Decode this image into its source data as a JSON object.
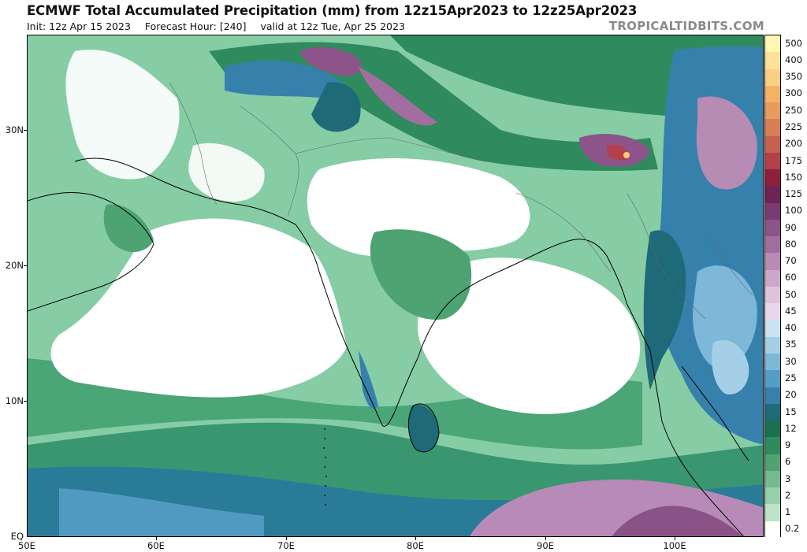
{
  "header": {
    "title": "ECMWF Total Accumulated Precipitation (mm) from 12z15Apr2023 to 12z25Apr2023",
    "init": "Init: 12z Apr 15 2023",
    "forecast_hour": "Forecast Hour: [240]",
    "valid": "valid at 12z Tue, Apr 25 2023",
    "brand": "TROPICALTIDBITS.COM"
  },
  "axes": {
    "lat_labels": [
      "30N",
      "20N",
      "10N",
      "EQ"
    ],
    "lon_labels": [
      "50E",
      "60E",
      "70E",
      "80E",
      "90E",
      "100E"
    ]
  },
  "colorbar": {
    "levels": [
      {
        "label": "500",
        "color": "#fff7b0"
      },
      {
        "label": "400",
        "color": "#fde19a"
      },
      {
        "label": "350",
        "color": "#fbcf82"
      },
      {
        "label": "300",
        "color": "#f5b265"
      },
      {
        "label": "250",
        "color": "#e79b5c"
      },
      {
        "label": "225",
        "color": "#d97d55"
      },
      {
        "label": "200",
        "color": "#c7614f"
      },
      {
        "label": "175",
        "color": "#b3404a"
      },
      {
        "label": "150",
        "color": "#8e1f3e"
      },
      {
        "label": "125",
        "color": "#6e2355"
      },
      {
        "label": "100",
        "color": "#7a3a73"
      },
      {
        "label": "90",
        "color": "#8c5489"
      },
      {
        "label": "80",
        "color": "#a26e9f"
      },
      {
        "label": "70",
        "color": "#b68bb4"
      },
      {
        "label": "60",
        "color": "#cba8c9"
      },
      {
        "label": "50",
        "color": "#ddc4dc"
      },
      {
        "label": "45",
        "color": "#e8d8ea"
      },
      {
        "label": "40",
        "color": "#c9e3f1"
      },
      {
        "label": "35",
        "color": "#a4cfe6"
      },
      {
        "label": "30",
        "color": "#7db8d8"
      },
      {
        "label": "25",
        "color": "#559dc4"
      },
      {
        "label": "20",
        "color": "#3680ac"
      },
      {
        "label": "15",
        "color": "#1f6a78"
      },
      {
        "label": "12",
        "color": "#1a7050"
      },
      {
        "label": "9",
        "color": "#2f8a5e"
      },
      {
        "label": "6",
        "color": "#4ea373"
      },
      {
        "label": "3",
        "color": "#73bb8f"
      },
      {
        "label": "2",
        "color": "#97cfaa"
      },
      {
        "label": "1",
        "color": "#bde3c8"
      },
      {
        "label": "0.2",
        "color": "#ffffff"
      }
    ]
  }
}
